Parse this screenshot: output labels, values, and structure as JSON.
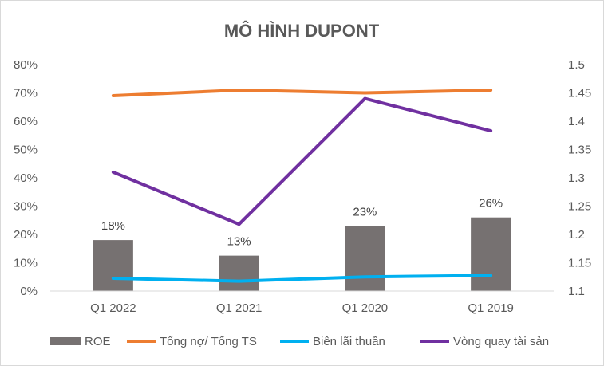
{
  "chart_data": {
    "type": "bar",
    "title": "MÔ HÌNH DUPONT",
    "categories": [
      "Q1 2022",
      "Q1 2021",
      "Q1 2020",
      "Q1 2019"
    ],
    "y_left": {
      "min": 0,
      "max": 0.8,
      "step": 0.1,
      "ticks": [
        "0%",
        "10%",
        "20%",
        "30%",
        "40%",
        "50%",
        "60%",
        "70%",
        "80%"
      ]
    },
    "y_right": {
      "min": 1.1,
      "max": 1.5,
      "step": 0.05,
      "ticks": [
        "1.1",
        "1.15",
        "1.2",
        "1.25",
        "1.3",
        "1.35",
        "1.4",
        "1.45",
        "1.5"
      ]
    },
    "series": [
      {
        "name": "ROE",
        "type": "bar",
        "axis": "left",
        "color": "#767171",
        "values": [
          0.18,
          0.125,
          0.23,
          0.26
        ],
        "labels": [
          "18%",
          "13%",
          "23%",
          "26%"
        ]
      },
      {
        "name": "Tổng nợ/ Tổng TS",
        "type": "line",
        "axis": "left",
        "color": "#ED7D31",
        "values": [
          0.69,
          0.71,
          0.7,
          0.71
        ]
      },
      {
        "name": "Biên lãi thuần",
        "type": "line",
        "axis": "left",
        "color": "#00B0F0",
        "values": [
          0.045,
          0.035,
          0.05,
          0.055
        ]
      },
      {
        "name": "Vòng quay tài sản",
        "type": "line",
        "axis": "right",
        "color": "#7030A0",
        "values": [
          1.31,
          1.218,
          1.44,
          1.383
        ]
      }
    ],
    "legend_position": "bottom",
    "grid": false
  }
}
